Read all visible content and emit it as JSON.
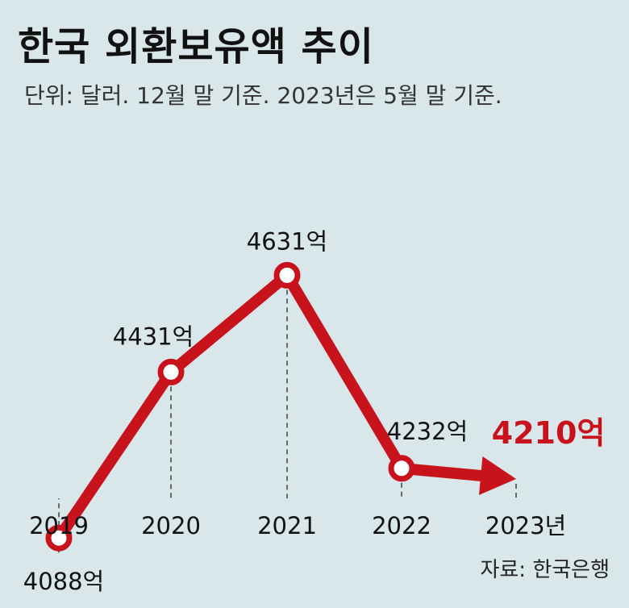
{
  "chart_data": {
    "type": "line",
    "title": "한국 외환보유액 추이",
    "subtitle": "단위: 달러. 12월 말 기준. 2023년은 5월 말 기준.",
    "source": "자료: 한국은행",
    "categories": [
      "2019",
      "2020",
      "2021",
      "2022",
      "2023년"
    ],
    "values": [
      4088,
      4431,
      4631,
      4232,
      4210
    ],
    "value_labels": [
      "4088억",
      "4431억",
      "4631억",
      "4232억",
      "4210억"
    ],
    "unit": "억 달러",
    "highlight_last": true,
    "ylim": [
      3900,
      4800
    ],
    "grid": false,
    "legend": "none",
    "colors": {
      "line": "#c8131d",
      "highlight_text": "#c8131d",
      "background": "#d9e6ea",
      "guide": "#333333"
    }
  }
}
